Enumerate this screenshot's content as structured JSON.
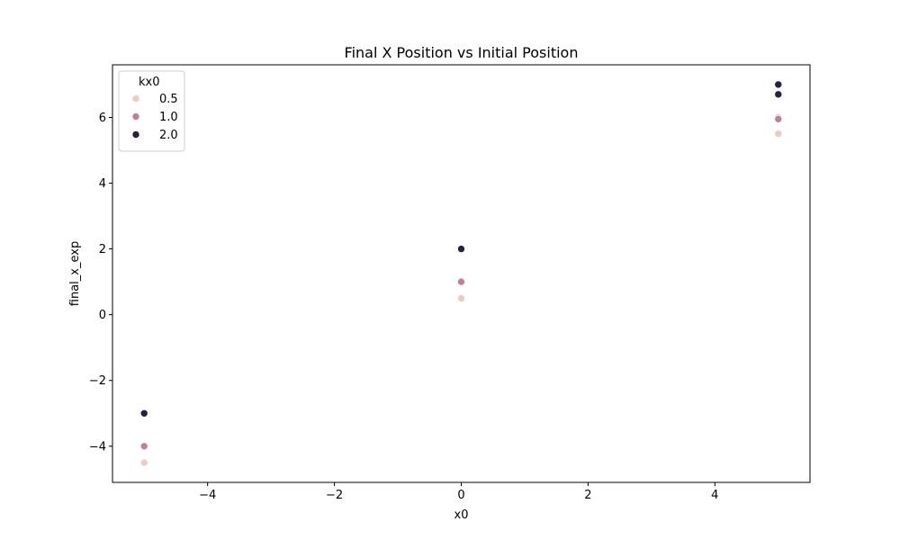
{
  "chart_data": {
    "type": "scatter",
    "title": "Final X Position vs Initial Position",
    "xlabel": "x0",
    "ylabel": "final_x_exp",
    "xlim": [
      -5.5,
      5.5
    ],
    "ylim": [
      -5.1,
      7.6
    ],
    "x_ticks": [
      -4,
      -2,
      0,
      2,
      4
    ],
    "y_ticks": [
      -4,
      -2,
      0,
      2,
      4,
      6
    ],
    "grid": false,
    "legend": {
      "title": "kx0",
      "placement": "top-left"
    },
    "series": [
      {
        "name": "0.5",
        "color": "#eecbbe",
        "x": [
          -5,
          0,
          5,
          5
        ],
        "y": [
          -4.5,
          0.5,
          5.5,
          6.0
        ]
      },
      {
        "name": "1.0",
        "color": "#c27f96",
        "x": [
          -5,
          0,
          5
        ],
        "y": [
          -4.0,
          1.0,
          5.95
        ]
      },
      {
        "name": "2.0",
        "color": "#2c1e3d",
        "x": [
          -5,
          0,
          5,
          5
        ],
        "y": [
          -3.0,
          2.0,
          6.7,
          7.0
        ]
      }
    ]
  }
}
